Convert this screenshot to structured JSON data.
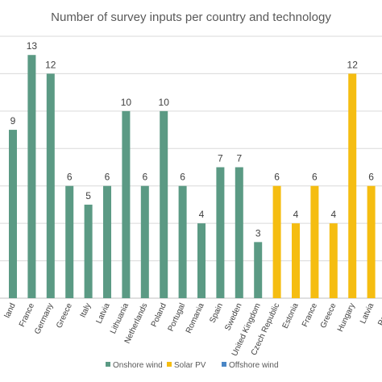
{
  "chart_data": {
    "type": "bar",
    "title": "Number of survey inputs per country and technology",
    "ylim": [
      0,
      14
    ],
    "grid": true,
    "legend_position": "bottom",
    "categories": [
      "land",
      "France",
      "Germany",
      "Greece",
      "Italy",
      "Latvia",
      "Lithuania",
      "Netherlands",
      "Poland",
      "Portugal",
      "Romania",
      "Spain",
      "Sweden",
      "United Kingdom",
      "Czech Republic",
      "Estonia",
      "France",
      "Greece",
      "Hungary",
      "Latvia",
      "Portug"
    ],
    "values": [
      9,
      13,
      12,
      6,
      5,
      6,
      10,
      6,
      10,
      6,
      4,
      7,
      7,
      3,
      6,
      4,
      6,
      4,
      12,
      6,
      null
    ],
    "data_labels": [
      "9",
      "13",
      "12",
      "6",
      "5",
      "6",
      "10",
      "6",
      "10",
      "6",
      "4",
      "7",
      "7",
      "3",
      "6",
      "4",
      "6",
      "4",
      "12",
      "6",
      ""
    ],
    "technology": [
      "Onshore wind",
      "Onshore wind",
      "Onshore wind",
      "Onshore wind",
      "Onshore wind",
      "Onshore wind",
      "Onshore wind",
      "Onshore wind",
      "Onshore wind",
      "Onshore wind",
      "Onshore wind",
      "Onshore wind",
      "Onshore wind",
      "Onshore wind",
      "Solar PV",
      "Solar PV",
      "Solar PV",
      "Solar PV",
      "Solar PV",
      "Solar PV",
      "Solar PV"
    ],
    "series": [
      {
        "name": "Onshore wind",
        "color": "#5b9a84"
      },
      {
        "name": "Solar PV",
        "color": "#f5bd11"
      },
      {
        "name": "Offshore wind",
        "color": "#4a86c5"
      }
    ]
  }
}
